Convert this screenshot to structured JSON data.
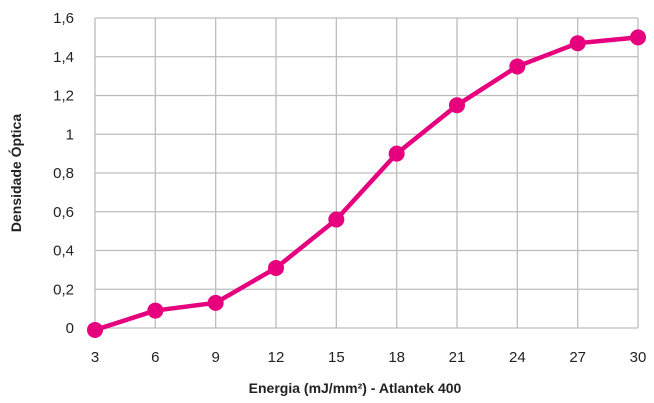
{
  "chart_data": {
    "type": "line",
    "xlabel": "Energia (mJ/mm²) - Atlantek 400",
    "ylabel": "Densidade Óptica",
    "x": [
      3,
      6,
      9,
      12,
      15,
      18,
      21,
      24,
      27,
      30
    ],
    "x_tick_labels": [
      "3",
      "6",
      "9",
      "12",
      "15",
      "18",
      "21",
      "24",
      "27",
      "30"
    ],
    "y_tick_values": [
      0,
      0.2,
      0.4,
      0.6,
      0.8,
      1,
      1.2,
      1.4,
      1.6
    ],
    "y_tick_labels": [
      "0",
      "0,2",
      "0,4",
      "0,6",
      "0,8",
      "1",
      "1,2",
      "1,4",
      "1,6"
    ],
    "xlim": [
      3,
      30
    ],
    "ylim": [
      0,
      1.6
    ],
    "grid": true,
    "legend": false,
    "series": [
      {
        "color": "#e6007e",
        "values": [
          -0.01,
          0.09,
          0.13,
          0.31,
          0.56,
          0.9,
          1.15,
          1.35,
          1.47,
          1.5
        ]
      }
    ]
  }
}
